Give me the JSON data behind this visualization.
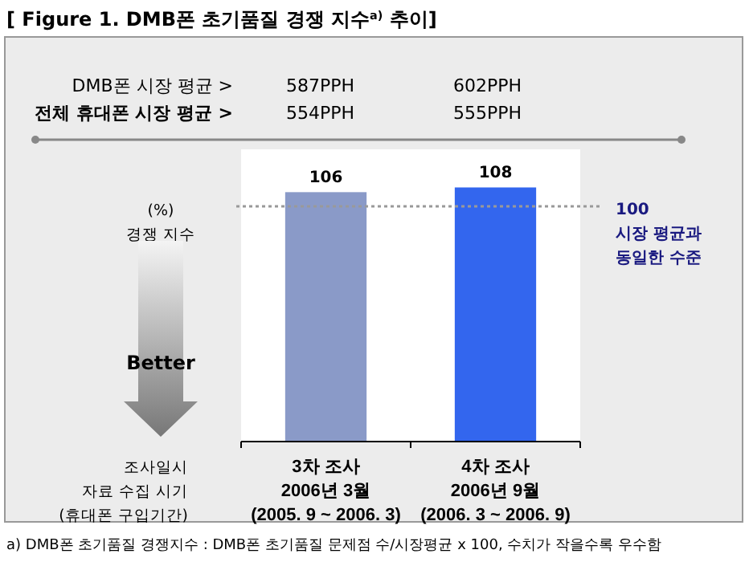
{
  "chart_data": {
    "type": "bar",
    "title": "[ Figure 1. DMB폰 초기품질 경쟁 지수$^{a)}$ 추이]",
    "ylabel": "(%)\n경쟁 지수",
    "categories": [
      "3차 조사\n2006년 3월\n(2005. 9 ~ 2006. 3)",
      "4차 조사\n2006년 9월\n(2006. 3 ~ 2006. 9)"
    ],
    "values": [
      106,
      108
    ],
    "colors": [
      "#8a9ac8",
      "#3366ee"
    ],
    "data_labels": true,
    "ref_lines": [
      {
        "axis": "y",
        "value": 100,
        "label": "100\n시장 평균과\n동일한 수준",
        "color": "#999999",
        "line_style": "dotted"
      }
    ],
    "annotations": [
      "DMB폰 시장 평균 >",
      "587PPH",
      "602PPH",
      "전체 휴대폰 시장 평균 >",
      "554PPH",
      "555PPH",
      "Better",
      "조사일시\n자료 수집 시기\n(휴대폰 구입기간)",
      "a) DMB폰 초기품질 경쟁지수 : DMB폰 초기품질 문제점 수/시장평균 x 100, 수치가 작을수록 우수함"
    ]
  }
}
